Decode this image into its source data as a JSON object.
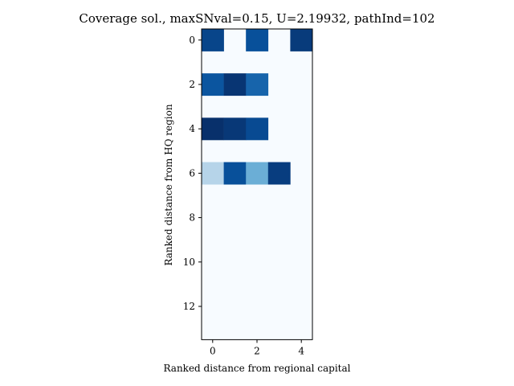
{
  "chart_data": {
    "type": "heatmap",
    "title": "Coverage sol., maxSNval=0.15, U=2.19932, pathInd=102",
    "xlabel": "Ranked distance from regional capital",
    "ylabel": "Ranked distance from HQ region",
    "x_ticks": [
      0,
      2,
      4
    ],
    "y_ticks": [
      0,
      2,
      4,
      6,
      8,
      10,
      12
    ],
    "n_cols": 5,
    "n_rows": 14,
    "colormap": "Blues",
    "vmin": 0,
    "vmax": 1,
    "grid": false,
    "cells": [
      {
        "row": 0,
        "col": 0,
        "value": 0.92
      },
      {
        "row": 0,
        "col": 2,
        "value": 0.88
      },
      {
        "row": 0,
        "col": 4,
        "value": 0.96
      },
      {
        "row": 2,
        "col": 0,
        "value": 0.86
      },
      {
        "row": 2,
        "col": 1,
        "value": 0.98
      },
      {
        "row": 2,
        "col": 2,
        "value": 0.8
      },
      {
        "row": 4,
        "col": 0,
        "value": 1.0
      },
      {
        "row": 4,
        "col": 1,
        "value": 0.97
      },
      {
        "row": 4,
        "col": 2,
        "value": 0.9
      },
      {
        "row": 6,
        "col": 0,
        "value": 0.3
      },
      {
        "row": 6,
        "col": 1,
        "value": 0.88
      },
      {
        "row": 6,
        "col": 2,
        "value": 0.5
      },
      {
        "row": 6,
        "col": 3,
        "value": 0.95
      }
    ]
  }
}
